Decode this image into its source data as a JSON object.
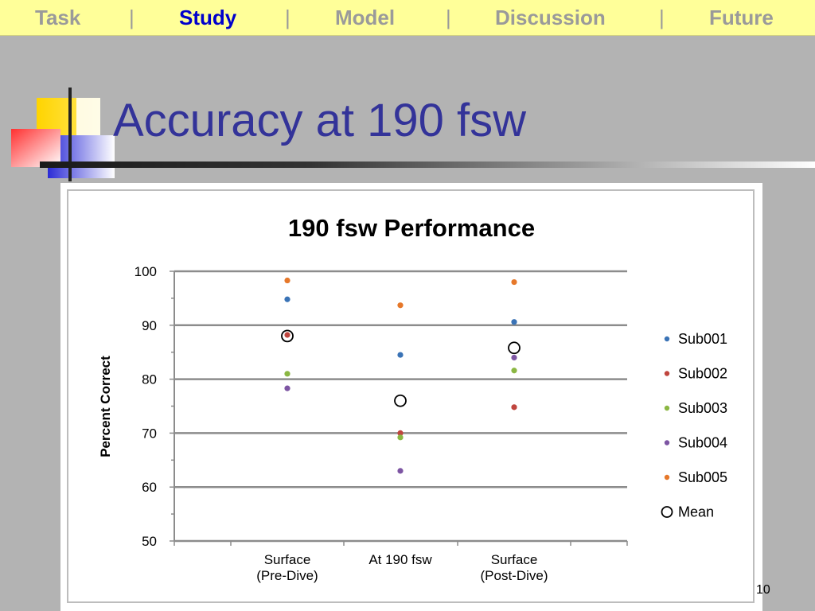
{
  "nav": {
    "items": [
      {
        "label": "Task",
        "active": false
      },
      {
        "label": "Study",
        "active": true
      },
      {
        "label": "Model",
        "active": false
      },
      {
        "label": "Discussion",
        "active": false
      },
      {
        "label": "Future",
        "active": false
      }
    ],
    "separator": "|"
  },
  "slide": {
    "title": "Accuracy at 190 fsw",
    "page_number": "10"
  },
  "colors": {
    "nav_background": "#ffff99",
    "nav_active": "#0000cc",
    "nav_inactive": "#9a9a9a",
    "title": "#333399",
    "slide_background": "#b3b3b3",
    "Sub001": "#3a73b6",
    "Sub002": "#c0453e",
    "Sub003": "#8bb743",
    "Sub004": "#7d55a3",
    "Sub005": "#e6782a"
  },
  "chart_data": {
    "type": "scatter",
    "title": "190 fsw Performance",
    "xlabel": "",
    "ylabel": "Percent Correct",
    "ylim": [
      50,
      100
    ],
    "yticks": [
      "50",
      "60",
      "70",
      "80",
      "90",
      "100"
    ],
    "categories": [
      "Surface\n(Pre-Dive)",
      "At 190 fsw",
      "Surface\n(Post-Dive)"
    ],
    "grid": true,
    "legend_position": "right",
    "series": [
      {
        "name": "Sub001",
        "values": [
          94.8,
          84.5,
          90.6
        ],
        "marker": "dot"
      },
      {
        "name": "Sub002",
        "values": [
          88.2,
          70.0,
          74.8
        ],
        "marker": "dot"
      },
      {
        "name": "Sub003",
        "values": [
          81.0,
          69.2,
          81.6
        ],
        "marker": "dot"
      },
      {
        "name": "Sub004",
        "values": [
          78.3,
          63.0,
          84.0
        ],
        "marker": "dot"
      },
      {
        "name": "Sub005",
        "values": [
          98.3,
          93.7,
          98.0
        ],
        "marker": "dot"
      },
      {
        "name": "Mean",
        "values": [
          88.0,
          76.0,
          85.8
        ],
        "marker": "open-circle"
      }
    ]
  }
}
